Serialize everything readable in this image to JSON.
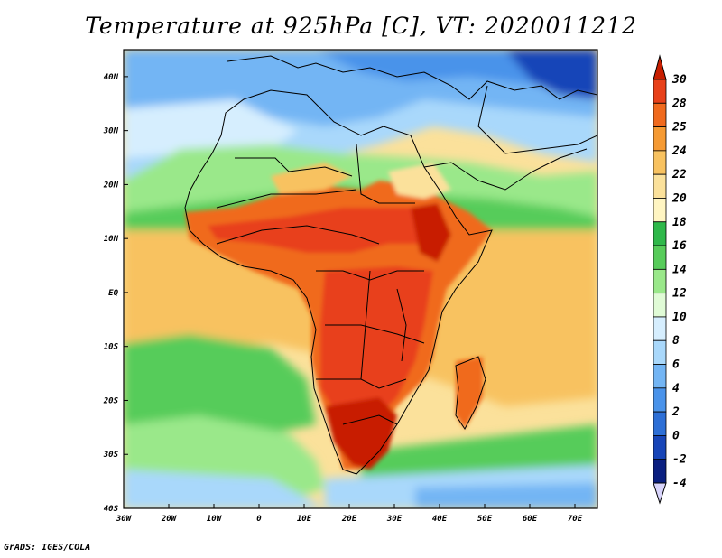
{
  "chart_data": {
    "type": "heatmap",
    "title": "Temperature at 925hPa [C], VT: 2020011212",
    "variable": "Temperature",
    "level": "925hPa",
    "units": "C",
    "valid_time": "2020011212",
    "x_range": [
      -30,
      75
    ],
    "y_range": [
      -40,
      45
    ],
    "x_ticks": [
      "30W",
      "20W",
      "10W",
      "0",
      "10E",
      "20E",
      "30E",
      "40E",
      "50E",
      "60E",
      "70E"
    ],
    "y_ticks": [
      "40N",
      "30N",
      "20N",
      "10N",
      "EQ",
      "10S",
      "20S",
      "30S",
      "40S"
    ],
    "colorbar": {
      "levels": [
        "30",
        "28",
        "25",
        "24",
        "22",
        "20",
        "18",
        "16",
        "14",
        "12",
        "10",
        "8",
        "6",
        "4",
        "2",
        "0",
        "-2",
        "-4"
      ],
      "colors": [
        "#c81e00",
        "#e8411a",
        "#f06a1e",
        "#f59a33",
        "#f8c260",
        "#fbe19b",
        "#fff5c2",
        "#2fb84a",
        "#57cc5a",
        "#9ae88a",
        "#e0fbd6",
        "#d6eefe",
        "#a9d8fb",
        "#73b5f4",
        "#4a93ea",
        "#2d6fd6",
        "#1745b8",
        "#0a1f80",
        "#d8d4fb"
      ]
    },
    "grid": false,
    "map": "Africa",
    "legend": "right colorbar"
  },
  "footer": {
    "credit": "GrADS: IGES/COLA"
  }
}
